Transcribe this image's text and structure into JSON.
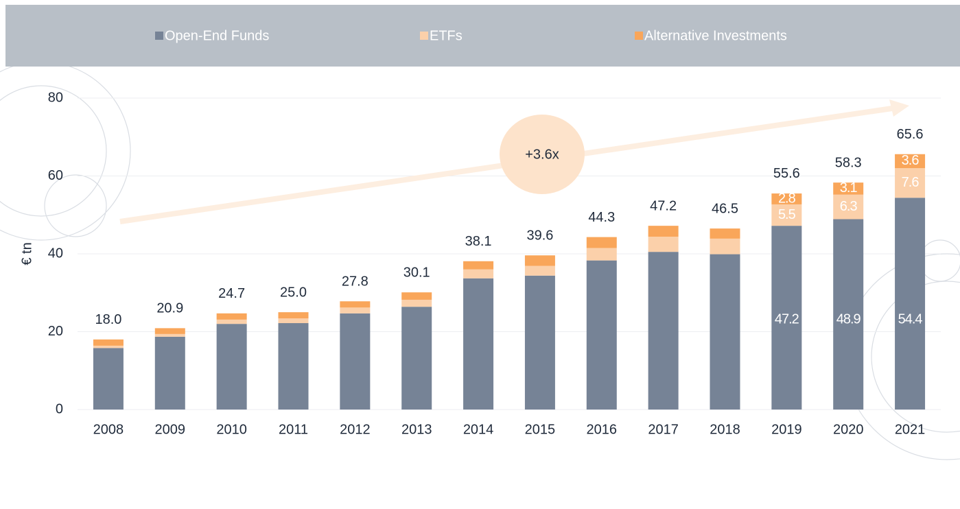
{
  "chart_data": {
    "type": "stacked-bar",
    "y_label": "€ tn",
    "annotation": "+3.6x",
    "categories": [
      "2008",
      "2009",
      "2010",
      "2011",
      "2012",
      "2013",
      "2014",
      "2015",
      "2016",
      "2017",
      "2018",
      "2019",
      "2020",
      "2021"
    ],
    "series": [
      {
        "name": "Open-End Funds",
        "color": "#768396",
        "values": [
          15.8,
          18.7,
          22.0,
          22.2,
          24.7,
          26.4,
          33.7,
          34.4,
          38.3,
          40.5,
          39.9,
          47.2,
          48.9,
          54.4
        ],
        "value_labels": [
          null,
          null,
          null,
          null,
          null,
          null,
          null,
          null,
          null,
          null,
          null,
          "47.2",
          "48.9",
          "54.4"
        ]
      },
      {
        "name": "ETFs",
        "color": "#fbd0aa",
        "values": [
          0.6,
          0.7,
          1.1,
          1.2,
          1.5,
          1.8,
          2.3,
          2.5,
          3.2,
          3.9,
          4.0,
          5.5,
          6.3,
          7.6
        ],
        "value_labels": [
          null,
          null,
          null,
          null,
          null,
          null,
          null,
          null,
          null,
          null,
          null,
          "5.5",
          "6.3",
          "7.6"
        ]
      },
      {
        "name": "Alternative Investments",
        "color": "#f9a65a",
        "values": [
          1.6,
          1.5,
          1.6,
          1.6,
          1.6,
          1.9,
          2.1,
          2.7,
          2.8,
          2.8,
          2.6,
          2.8,
          3.1,
          3.6
        ],
        "value_labels": [
          null,
          null,
          null,
          null,
          null,
          null,
          null,
          null,
          null,
          null,
          null,
          "2.8",
          "3.1",
          "3.6"
        ]
      }
    ],
    "totals": {
      "values": [
        18.0,
        20.9,
        24.7,
        25.0,
        27.8,
        30.1,
        38.1,
        39.6,
        44.3,
        47.2,
        46.5,
        55.6,
        58.3,
        65.6
      ],
      "value_labels": [
        "18.0",
        "20.9",
        "24.7",
        "25.0",
        "27.8",
        "30.1",
        "38.1",
        "39.6",
        "44.3",
        "47.2",
        "46.5",
        "55.6",
        "58.3",
        "65.6"
      ]
    },
    "ylim": [
      0,
      80
    ],
    "yticks": [
      0,
      20,
      40,
      60,
      80
    ],
    "grid": true
  }
}
